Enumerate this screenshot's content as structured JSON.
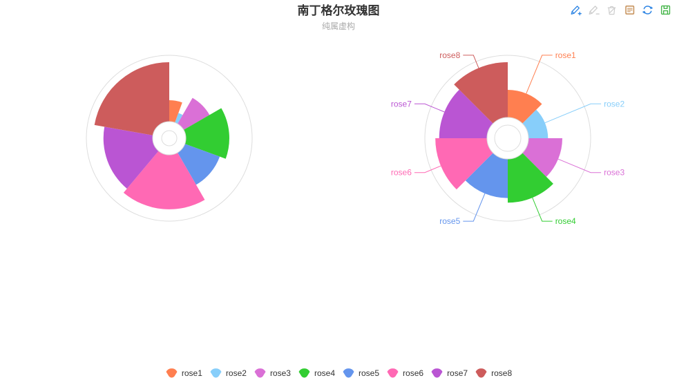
{
  "header": {
    "title": "南丁格尔玫瑰图",
    "subtitle": "纯属虚构"
  },
  "toolbox": {
    "icons": [
      {
        "name": "mark-pencil-add-icon",
        "color": "#2b83e3"
      },
      {
        "name": "mark-pencil-remove-icon",
        "color": "#cccccc"
      },
      {
        "name": "mark-clear-trash-icon",
        "color": "#cccccc"
      },
      {
        "name": "data-view-icon",
        "color": "#c8945f"
      },
      {
        "name": "restore-refresh-icon",
        "color": "#2b83e3"
      },
      {
        "name": "save-as-image-icon",
        "color": "#44b549"
      }
    ]
  },
  "chart_data": {
    "type": "pie",
    "title": "南丁格尔玫瑰图",
    "subtitle": "纯属虚构",
    "categories": [
      "rose1",
      "rose2",
      "rose3",
      "rose4",
      "rose5",
      "rose6",
      "rose7",
      "rose8"
    ],
    "values": [
      10,
      5,
      15,
      25,
      20,
      35,
      30,
      40
    ],
    "colors": [
      "#ff7f50",
      "#87cefa",
      "#da70d6",
      "#32cd32",
      "#6495ed",
      "#ff69b4",
      "#ba55d3",
      "#cd5c5c"
    ],
    "series": [
      {
        "rose_type": "radius",
        "show_labels": false,
        "hole_radius": 24,
        "ring_radius": 11,
        "outer_radius": 110,
        "guide_radius": 120
      },
      {
        "rose_type": "area",
        "show_labels": true,
        "hole_radius": 30,
        "ring_radius": 19,
        "outer_radius": 110,
        "guide_radius": 120,
        "label_radius": 130
      }
    ],
    "legend": {
      "position": "bottom",
      "items": [
        "rose1",
        "rose2",
        "rose3",
        "rose4",
        "rose5",
        "rose6",
        "rose7",
        "rose8"
      ]
    },
    "start_angle_deg": 0,
    "clockwise": true
  }
}
